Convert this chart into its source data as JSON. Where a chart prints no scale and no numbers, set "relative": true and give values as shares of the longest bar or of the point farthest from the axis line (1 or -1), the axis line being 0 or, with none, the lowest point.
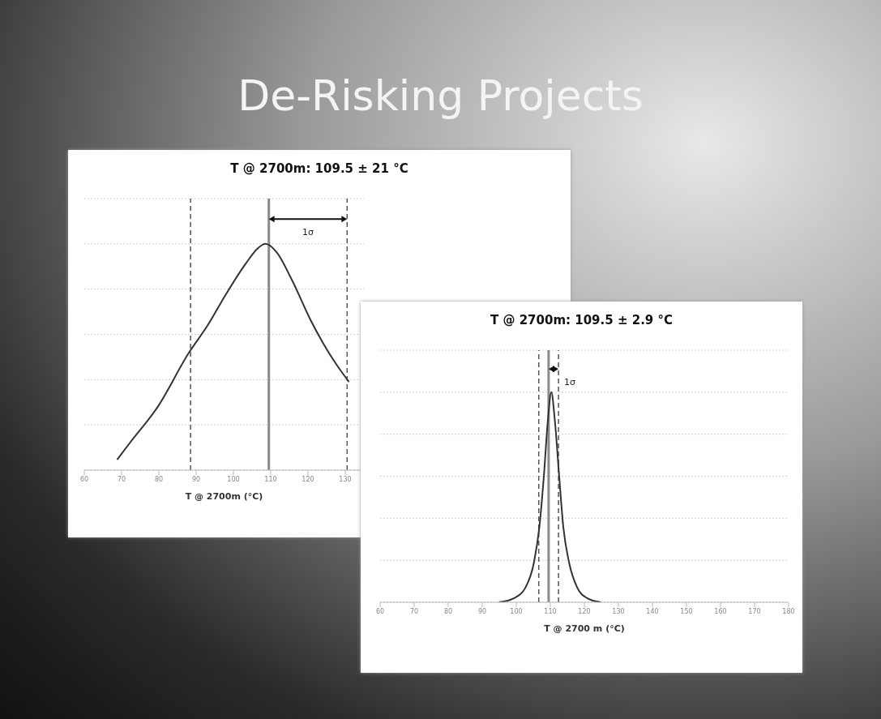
{
  "chart_data": [
    {
      "type": "other",
      "title": "De-Risking Projects"
    },
    {
      "type": "line",
      "title": "T @ 2700m:  109.5 ± 21 °C",
      "xlabel": "T @ 2700m (°C)",
      "relative": true,
      "x": [
        68.8,
        72.2,
        79.7,
        88.1,
        93.1,
        98.1,
        103.2,
        106.5,
        108.6,
        111.5,
        115.7,
        120.8,
        124.1,
        127.5,
        131.0
      ],
      "values": [
        0.046,
        0.12,
        0.28,
        0.52,
        0.64,
        0.78,
        0.91,
        0.98,
        1.0,
        0.965,
        0.84,
        0.66,
        0.56,
        0.47,
        0.39
      ],
      "color": "#333333",
      "xlim": [
        60,
        135
      ],
      "xticks": [
        60,
        70,
        80,
        90,
        100,
        110,
        120,
        130
      ],
      "grid": "y",
      "marker": "none",
      "line_style": "solid",
      "ref_lines": [
        {
          "axis": "x",
          "value": 88.5,
          "line_style": "dashed",
          "color": "#555555"
        },
        {
          "axis": "x",
          "value": 109.5,
          "line_style": "solid",
          "color": "#8a8a8a"
        },
        {
          "axis": "x",
          "value": 130.5,
          "line_style": "dashed",
          "color": "#555555"
        }
      ],
      "annotations": [
        "1σ"
      ]
    },
    {
      "type": "line",
      "title": "T @ 2700m:  109.5 ± 2.9 °C",
      "xlabel": "T @ 2700 m (°C)",
      "relative": true,
      "x": [
        94.9,
        99.4,
        102.7,
        105.2,
        106.8,
        108.1,
        109.3,
        110.3,
        111.3,
        112.6,
        113.8,
        115.5,
        117.9,
        120.8,
        124.9
      ],
      "values": [
        0,
        0.02,
        0.07,
        0.19,
        0.36,
        0.6,
        0.87,
        1.0,
        0.87,
        0.6,
        0.36,
        0.19,
        0.07,
        0.02,
        0
      ],
      "color": "#333333",
      "xlim": [
        60,
        180
      ],
      "xticks": [
        60,
        70,
        80,
        90,
        100,
        110,
        120,
        130,
        140,
        150,
        160,
        170,
        180
      ],
      "grid": "y",
      "marker": "none",
      "line_style": "solid",
      "ref_lines": [
        {
          "axis": "x",
          "value": 106.6,
          "line_style": "dashed",
          "color": "#555555"
        },
        {
          "axis": "x",
          "value": 109.5,
          "line_style": "solid",
          "color": "#8a8a8a"
        },
        {
          "axis": "x",
          "value": 112.4,
          "line_style": "dashed",
          "color": "#555555"
        }
      ],
      "annotations": [
        "1σ"
      ]
    }
  ]
}
